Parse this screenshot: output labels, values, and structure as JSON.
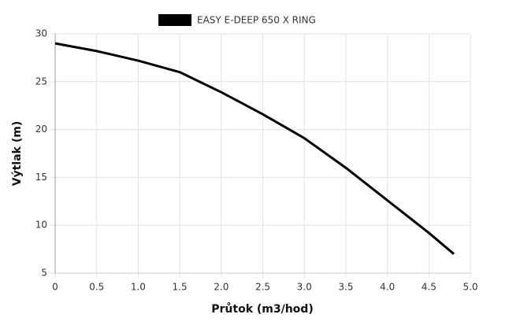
{
  "chart_data": {
    "type": "line",
    "x_label": "Průtok (m3/hod)",
    "y_label": "Výtlak (m)",
    "x": [
      0,
      0.5,
      1.0,
      1.5,
      2.0,
      2.5,
      3.0,
      3.5,
      4.0,
      4.5,
      4.8
    ],
    "series": [
      {
        "name": "EASY E-DEEP 650 X RING",
        "color": "#000000",
        "values": [
          29,
          28.2,
          27.2,
          26.0,
          23.9,
          21.6,
          19.1,
          16.0,
          12.6,
          9.2,
          7.0
        ]
      }
    ],
    "xlim": [
      0,
      5.0
    ],
    "xticks": [
      0,
      0.5,
      {
        "value": 1.0,
        "label": "1.0"
      },
      1.5,
      {
        "value": 2.0,
        "label": "2.0"
      },
      2.5,
      {
        "value": 3.0,
        "label": "3.0"
      },
      3.5,
      {
        "value": 4.0,
        "label": "4.0"
      },
      4.5,
      {
        "value": 5.0,
        "label": "5.0"
      }
    ],
    "ylim": [
      5,
      30
    ],
    "yticks": [
      5,
      10,
      15,
      20,
      25,
      30
    ],
    "grid": true
  }
}
